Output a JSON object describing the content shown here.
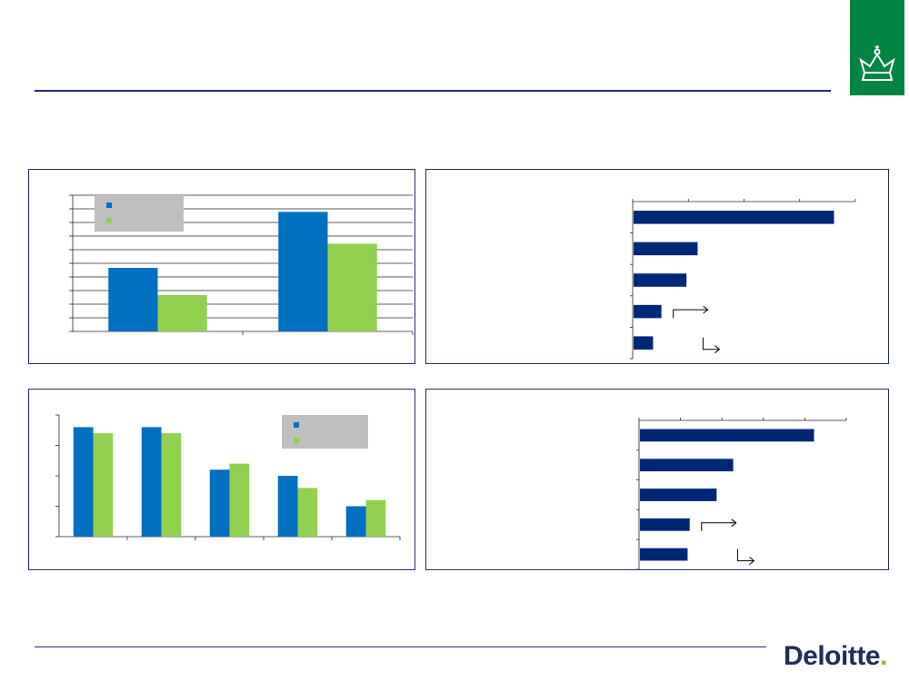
{
  "branding": {
    "logo_text": "Deloitte",
    "logo_dot": ".",
    "crest_icon": "crown-icon",
    "crest_color": "#008542"
  },
  "colors": {
    "series_blue": "#0070c0",
    "series_green": "#92d050",
    "bar_navy": "#002776",
    "legend_bg": "#bfbfbf",
    "grid": "#262626",
    "rule": "#1f2d6b"
  },
  "chart_data": [
    {
      "type": "bar",
      "orientation": "vertical",
      "categories": [
        "",
        ""
      ],
      "series": [
        {
          "color": "#0070c0",
          "values": [
            42,
            79
          ]
        },
        {
          "color": "#92d050",
          "values": [
            24,
            58
          ]
        }
      ],
      "ylim": [
        0,
        90
      ],
      "grid": true,
      "legend": "top-left"
    },
    {
      "type": "bar",
      "orientation": "horizontal",
      "categories": [
        "",
        "",
        "",
        "",
        ""
      ],
      "series": [
        {
          "color": "#002776",
          "values": [
            3.6,
            1.15,
            0.95,
            0.5,
            0.35
          ]
        }
      ],
      "xlim": [
        0,
        4
      ],
      "grid": false,
      "arrows": 2
    },
    {
      "type": "bar",
      "orientation": "vertical",
      "categories": [
        "",
        "",
        "",
        "",
        ""
      ],
      "series": [
        {
          "color": "#0070c0",
          "values": [
            3.6,
            3.6,
            2.2,
            2.0,
            1.0
          ]
        },
        {
          "color": "#92d050",
          "values": [
            3.4,
            3.4,
            2.4,
            1.6,
            1.2
          ]
        }
      ],
      "ylim": [
        0,
        4
      ],
      "grid": false,
      "legend": "top-right"
    },
    {
      "type": "bar",
      "orientation": "horizontal",
      "categories": [
        "",
        "",
        "",
        "",
        ""
      ],
      "series": [
        {
          "color": "#002776",
          "values": [
            4.2,
            2.25,
            1.85,
            1.2,
            1.15
          ]
        }
      ],
      "xlim": [
        0,
        5
      ],
      "grid": false,
      "arrows": 2
    }
  ]
}
